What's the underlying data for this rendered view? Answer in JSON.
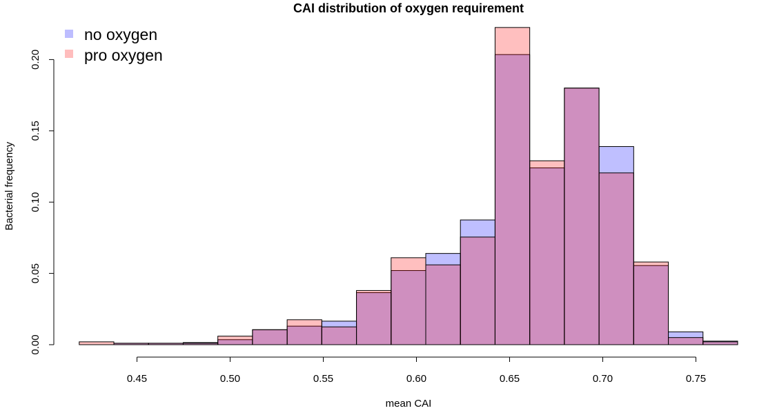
{
  "chart_data": {
    "type": "bar",
    "subtype": "overlaid-histogram",
    "title": "CAI distribution of oxygen requirement",
    "xlabel": "mean CAI",
    "ylabel": "Bacterial frequency",
    "xlim": [
      0.42,
      0.77
    ],
    "ylim": [
      0,
      0.22
    ],
    "bin_width": 0.0186,
    "x_ticks": [
      0.45,
      0.5,
      0.55,
      0.6,
      0.65,
      0.7,
      0.75
    ],
    "x_tick_labels": [
      "0.45",
      "0.50",
      "0.55",
      "0.60",
      "0.65",
      "0.70",
      "0.75"
    ],
    "y_ticks": [
      0,
      0.05,
      0.1,
      0.15,
      0.2
    ],
    "y_tick_labels": [
      "0.00",
      "0.05",
      "0.10",
      "0.15",
      "0.20"
    ],
    "bin_starts": [
      0.419,
      0.4376,
      0.4562,
      0.4748,
      0.4934,
      0.512,
      0.5306,
      0.5492,
      0.5678,
      0.5864,
      0.605,
      0.6236,
      0.6422,
      0.6608,
      0.6794,
      0.698,
      0.7166,
      0.7352,
      0.7538
    ],
    "grid": false,
    "legend_position": "top-left",
    "series": [
      {
        "name": "no oxygen",
        "color": "#0000ff",
        "values": [
          0,
          0.001,
          0.001,
          0.0015,
          0.0035,
          0.0105,
          0.013,
          0.0165,
          0.0365,
          0.052,
          0.064,
          0.0875,
          0.2035,
          0.124,
          0.18,
          0.139,
          0.0555,
          0.009,
          0.0025
        ]
      },
      {
        "name": "pro oxygen",
        "color": "#ff0000",
        "values": [
          0.002,
          0.001,
          0.001,
          0.001,
          0.006,
          0.0105,
          0.0175,
          0.0125,
          0.038,
          0.061,
          0.056,
          0.0755,
          0.2225,
          0.129,
          0.18,
          0.1205,
          0.058,
          0.005,
          0.002
        ]
      }
    ]
  },
  "legend": {
    "items": [
      {
        "label": "no oxygen",
        "color": "#bdbdff"
      },
      {
        "label": "pro oxygen",
        "color": "#ffbdbd"
      }
    ]
  },
  "colors": {
    "no_oxygen_fill": "rgba(0,0,255,0.25)",
    "pro_oxygen_fill": "rgba(255,0,0,0.25)",
    "bar_stroke": "#000000"
  }
}
